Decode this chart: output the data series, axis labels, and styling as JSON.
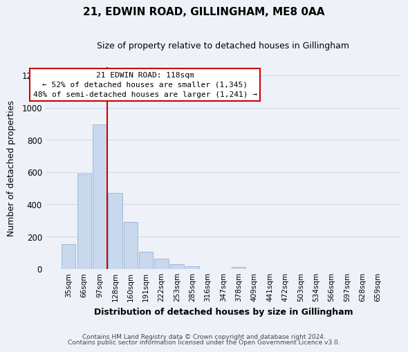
{
  "title": "21, EDWIN ROAD, GILLINGHAM, ME8 0AA",
  "subtitle": "Size of property relative to detached houses in Gillingham",
  "xlabel": "Distribution of detached houses by size in Gillingham",
  "ylabel": "Number of detached properties",
  "footer_line1": "Contains HM Land Registry data © Crown copyright and database right 2024.",
  "footer_line2": "Contains public sector information licensed under the Open Government Licence v3.0.",
  "bar_labels": [
    "35sqm",
    "66sqm",
    "97sqm",
    "128sqm",
    "160sqm",
    "191sqm",
    "222sqm",
    "253sqm",
    "285sqm",
    "316sqm",
    "347sqm",
    "378sqm",
    "409sqm",
    "441sqm",
    "472sqm",
    "503sqm",
    "534sqm",
    "566sqm",
    "597sqm",
    "628sqm",
    "659sqm"
  ],
  "bar_values": [
    155,
    590,
    895,
    470,
    290,
    105,
    62,
    28,
    15,
    0,
    0,
    12,
    0,
    0,
    0,
    0,
    0,
    0,
    0,
    0,
    0
  ],
  "bar_color": "#c8d9ed",
  "bar_edge_color": "#a0b8d8",
  "vline_color": "#cc0000",
  "vline_pos": 2.5,
  "ylim": [
    0,
    1250
  ],
  "yticks": [
    0,
    200,
    400,
    600,
    800,
    1000,
    1200
  ],
  "annotation_title": "21 EDWIN ROAD: 118sqm",
  "annotation_line1": "← 52% of detached houses are smaller (1,345)",
  "annotation_line2": "48% of semi-detached houses are larger (1,241) →",
  "annotation_box_color": "#ffffff",
  "annotation_box_edge_color": "#cc0000",
  "grid_color": "#d0d8e8",
  "background_color": "#eef2f8",
  "title_fontsize": 11,
  "subtitle_fontsize": 9,
  "axis_label_fontsize": 9,
  "tick_fontsize": 7.5,
  "annotation_fontsize": 8,
  "footer_fontsize": 6.5
}
